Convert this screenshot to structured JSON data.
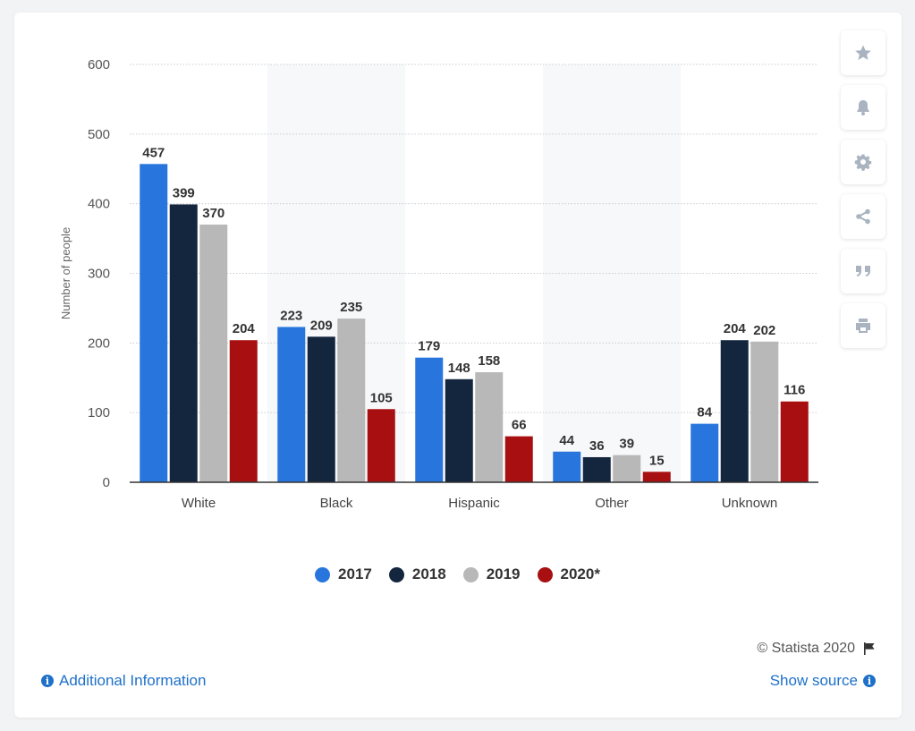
{
  "chart_data": {
    "type": "bar",
    "categories": [
      "White",
      "Black",
      "Hispanic",
      "Other",
      "Unknown"
    ],
    "series": [
      {
        "name": "2017",
        "values": [
          457,
          223,
          179,
          44,
          84
        ]
      },
      {
        "name": "2018",
        "values": [
          399,
          209,
          148,
          36,
          204
        ]
      },
      {
        "name": "2019",
        "values": [
          370,
          235,
          158,
          39,
          202
        ]
      },
      {
        "name": "2020*",
        "values": [
          204,
          105,
          66,
          15,
          116
        ]
      }
    ],
    "colors": [
      "#2876dd",
      "#13263e",
      "#b8b8b8",
      "#a80f10"
    ],
    "ylabel": "Number of people",
    "xlabel": "",
    "ylim": [
      0,
      600
    ],
    "yticks": [
      0,
      100,
      200,
      300,
      400,
      500,
      600
    ],
    "grid": true,
    "legend_position": "bottom"
  },
  "toolbar": {
    "icons": [
      "star-icon",
      "bell-icon",
      "gear-icon",
      "share-icon",
      "quote-icon",
      "print-icon"
    ]
  },
  "footer": {
    "credit": "© Statista 2020",
    "additional_info": "Additional Information",
    "show_source": "Show source"
  }
}
